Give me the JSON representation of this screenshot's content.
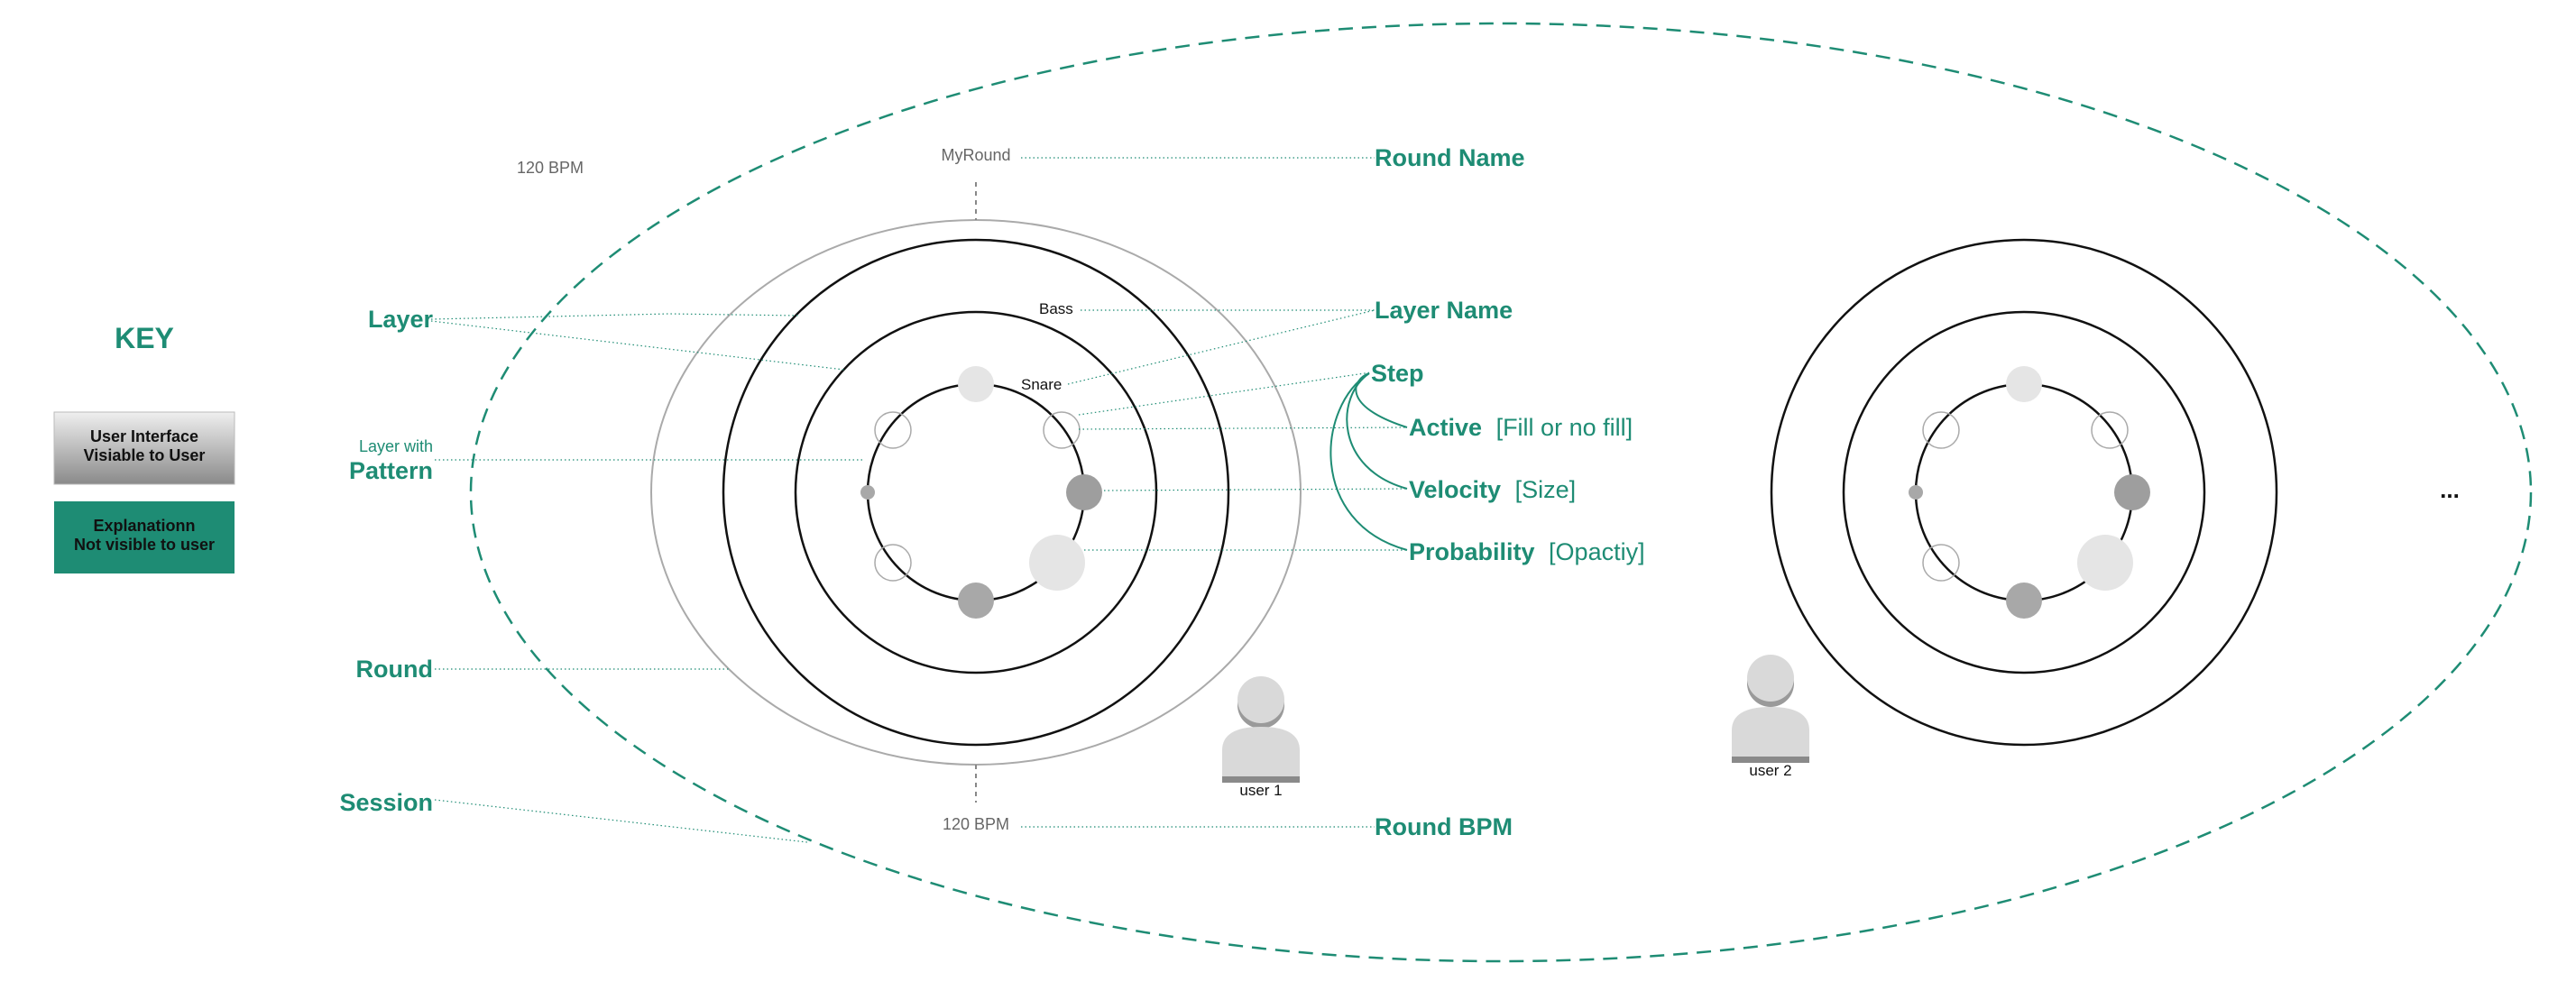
{
  "key": {
    "title": "KEY",
    "ui_box_line1": "User Interface",
    "ui_box_line2": "Visiable to User",
    "expl_box_line1": "Explanationn",
    "expl_box_line2": "Not visible to user"
  },
  "left_labels": {
    "layer": "Layer",
    "layer_with": "Layer with",
    "pattern": "Pattern",
    "round": "Round",
    "session": "Session"
  },
  "round1": {
    "bpm_top_left": "120 BPM",
    "name": "MyRound",
    "layer_outer": "Bass",
    "layer_inner": "Snare",
    "bpm_bottom": "120 BPM",
    "user": "user 1"
  },
  "right_labels": {
    "round_name": "Round Name",
    "layer_name": "Layer Name",
    "step": "Step",
    "active": "Active",
    "active_detail": "[Fill or no fill]",
    "velocity": "Velocity",
    "velocity_detail": "[Size]",
    "probability": "Probability",
    "probability_detail": "[Opactiy]",
    "round_bpm": "Round BPM"
  },
  "round2": {
    "user": "user 2"
  },
  "more": "...",
  "colors": {
    "accent": "#1e8c74",
    "step_fill": "#b0b0b0",
    "ring": "#111111"
  }
}
